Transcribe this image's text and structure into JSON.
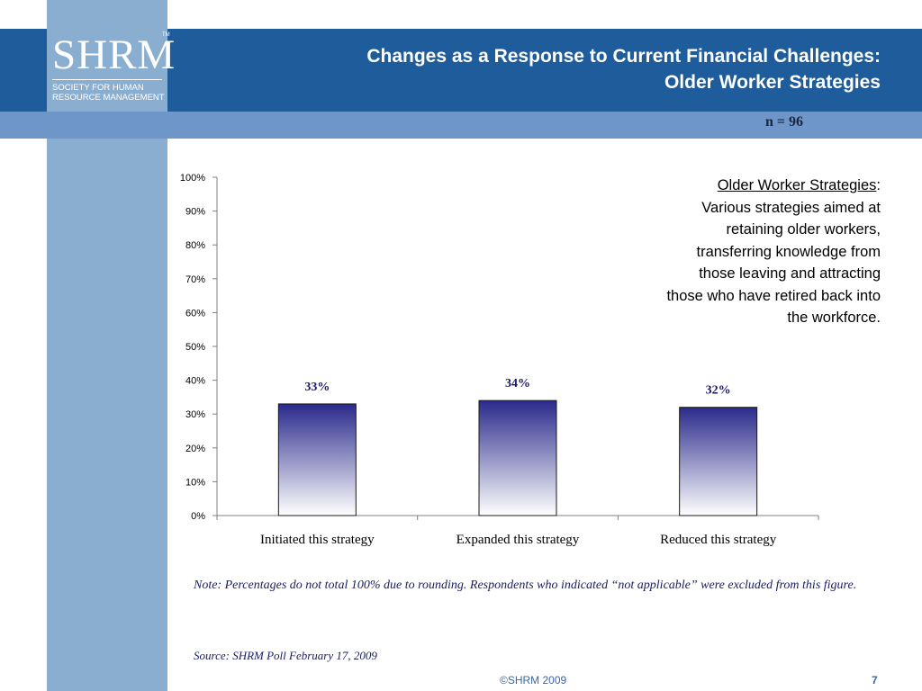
{
  "logo": {
    "letters": "SHRM",
    "tm": "TM",
    "tagline_line1": "Society for Human",
    "tagline_line2": "Resource Management"
  },
  "title": {
    "line1": "Changes as a Response to Current Financial Challenges:",
    "line2": "Older Worker Strategies"
  },
  "sample_size": "n = 96",
  "callout": {
    "heading": "Older Worker Strategies",
    "colon": ":",
    "body_lines": [
      "Various strategies aimed at",
      "retaining older workers,",
      "transferring knowledge from",
      "those leaving and attracting",
      "those who have retired back into",
      "the workforce."
    ]
  },
  "chart_data": {
    "type": "bar",
    "categories": [
      "Initiated this strategy",
      "Expanded this strategy",
      "Reduced this strategy"
    ],
    "values": [
      33,
      34,
      32
    ],
    "value_labels": [
      "33%",
      "34%",
      "32%"
    ],
    "y_ticks": [
      "0%",
      "10%",
      "20%",
      "30%",
      "40%",
      "50%",
      "60%",
      "70%",
      "80%",
      "90%",
      "100%"
    ],
    "ylim": [
      0,
      100
    ],
    "grid": false,
    "bar_gradient": {
      "top": "#2a2a8c",
      "bottom": "#ffffff"
    }
  },
  "note": "Note: Percentages do not total 100%  due to rounding. Respondents who indicated “not applicable” were excluded from this figure.",
  "source": "Source: SHRM Poll February 17, 2009",
  "footer": {
    "copyright": "©SHRM 2009",
    "page_number": "7"
  },
  "colors": {
    "header": "#1f5c9c",
    "subheader": "#6f96c8",
    "sidebar": "#8aaed0"
  }
}
